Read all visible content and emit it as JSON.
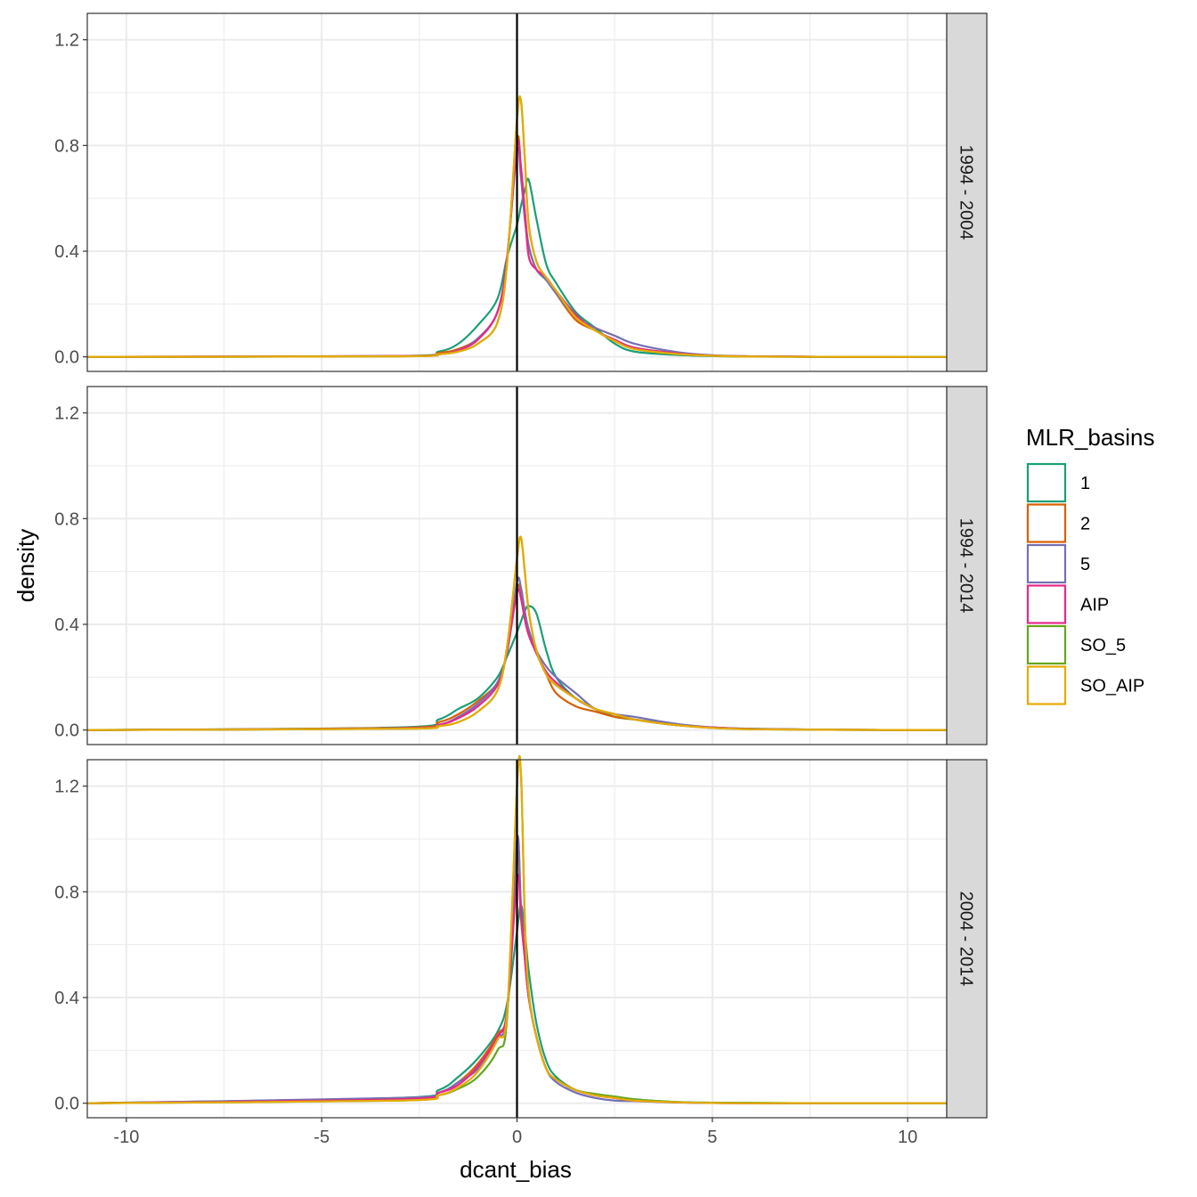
{
  "chart_data": {
    "type": "line",
    "xlabel": "dcant_bias",
    "ylabel": "density",
    "xlim": [
      -11,
      11
    ],
    "ylim": [
      -0.055,
      1.3
    ],
    "x_ticks": [
      -10,
      -5,
      0,
      5,
      10
    ],
    "x_tick_labels": [
      "-10",
      "-5",
      "0",
      "5",
      "10"
    ],
    "y_ticks": [
      0.0,
      0.4,
      0.8,
      1.2
    ],
    "y_tick_labels": [
      "0.0",
      "0.4",
      "0.8",
      "1.2"
    ],
    "grid": true,
    "vline_x": 0,
    "legend": {
      "title": "MLR_basins",
      "position": "right",
      "entries": [
        {
          "label": "1",
          "color": "#1B9E77"
        },
        {
          "label": "2",
          "color": "#D95F02"
        },
        {
          "label": "5",
          "color": "#7570B3"
        },
        {
          "label": "AIP",
          "color": "#E7298A"
        },
        {
          "label": "SO_5",
          "color": "#66A61E"
        },
        {
          "label": "SO_AIP",
          "color": "#E6AB02"
        }
      ]
    },
    "x_grid": [
      -11,
      -3,
      -2,
      -1.5,
      -1,
      -0.5,
      -0.25,
      0,
      0.1,
      0.2,
      0.3,
      0.5,
      0.75,
      1,
      1.5,
      2,
      2.5,
      3,
      4,
      5,
      6,
      8,
      11
    ],
    "facets": [
      {
        "strip": "1994 - 2004",
        "series": [
          {
            "name": "1",
            "values": [
              0,
              0.003,
              0.02,
              0.05,
              0.12,
              0.22,
              0.38,
              0.5,
              0.57,
              0.63,
              0.67,
              0.52,
              0.35,
              0.28,
              0.17,
              0.11,
              0.05,
              0.02,
              0.008,
              0.003,
              0.001,
              0,
              0
            ]
          },
          {
            "name": "2",
            "values": [
              0,
              0.003,
              0.015,
              0.03,
              0.07,
              0.17,
              0.38,
              0.82,
              0.72,
              0.55,
              0.42,
              0.33,
              0.3,
              0.24,
              0.14,
              0.1,
              0.06,
              0.035,
              0.015,
              0.005,
              0.002,
              0,
              0
            ]
          },
          {
            "name": "5",
            "values": [
              0,
              0.003,
              0.01,
              0.025,
              0.07,
              0.17,
              0.38,
              0.78,
              0.68,
              0.52,
              0.42,
              0.33,
              0.29,
              0.24,
              0.15,
              0.11,
              0.08,
              0.05,
              0.02,
              0.006,
              0.002,
              0,
              0
            ]
          },
          {
            "name": "AIP",
            "values": [
              0,
              0.003,
              0.01,
              0.025,
              0.065,
              0.17,
              0.38,
              0.8,
              0.72,
              0.55,
              0.38,
              0.33,
              0.3,
              0.25,
              0.16,
              0.1,
              0.065,
              0.035,
              0.015,
              0.005,
              0.002,
              0,
              0
            ]
          },
          {
            "name": "SO_5",
            "values": [
              0,
              0.002,
              0.01,
              0.02,
              0.05,
              0.13,
              0.36,
              0.9,
              0.97,
              0.75,
              0.5,
              0.36,
              0.3,
              0.25,
              0.15,
              0.1,
              0.06,
              0.03,
              0.012,
              0.004,
              0.001,
              0,
              0
            ]
          },
          {
            "name": "SO_AIP",
            "values": [
              0,
              0.002,
              0.01,
              0.02,
              0.05,
              0.13,
              0.36,
              0.9,
              0.97,
              0.75,
              0.5,
              0.36,
              0.3,
              0.25,
              0.15,
              0.1,
              0.06,
              0.03,
              0.012,
              0.004,
              0.001,
              0,
              0
            ]
          }
        ]
      },
      {
        "strip": "1994 - 2014",
        "series": [
          {
            "name": "1",
            "values": [
              0,
              0.01,
              0.04,
              0.08,
              0.12,
              0.2,
              0.28,
              0.37,
              0.41,
              0.45,
              0.47,
              0.44,
              0.3,
              0.2,
              0.12,
              0.08,
              0.05,
              0.04,
              0.02,
              0.01,
              0.005,
              0.001,
              0
            ]
          },
          {
            "name": "2",
            "values": [
              0,
              0.008,
              0.03,
              0.06,
              0.11,
              0.18,
              0.3,
              0.54,
              0.5,
              0.42,
              0.36,
              0.29,
              0.21,
              0.14,
              0.09,
              0.07,
              0.05,
              0.04,
              0.02,
              0.01,
              0.004,
              0.001,
              0
            ]
          },
          {
            "name": "5",
            "values": [
              0,
              0.006,
              0.02,
              0.05,
              0.1,
              0.18,
              0.3,
              0.56,
              0.54,
              0.45,
              0.38,
              0.3,
              0.24,
              0.2,
              0.14,
              0.08,
              0.06,
              0.05,
              0.025,
              0.01,
              0.004,
              0.001,
              0
            ]
          },
          {
            "name": "AIP",
            "values": [
              0,
              0.006,
              0.02,
              0.045,
              0.09,
              0.17,
              0.3,
              0.52,
              0.5,
              0.42,
              0.36,
              0.29,
              0.22,
              0.18,
              0.12,
              0.08,
              0.06,
              0.04,
              0.02,
              0.01,
              0.004,
              0.001,
              0
            ]
          },
          {
            "name": "SO_5",
            "values": [
              0,
              0.005,
              0.015,
              0.03,
              0.07,
              0.15,
              0.32,
              0.65,
              0.73,
              0.6,
              0.45,
              0.3,
              0.21,
              0.17,
              0.12,
              0.08,
              0.06,
              0.04,
              0.02,
              0.008,
              0.003,
              0.001,
              0
            ]
          },
          {
            "name": "SO_AIP",
            "values": [
              0,
              0.005,
              0.015,
              0.03,
              0.07,
              0.15,
              0.32,
              0.65,
              0.73,
              0.6,
              0.45,
              0.3,
              0.21,
              0.17,
              0.12,
              0.08,
              0.06,
              0.04,
              0.02,
              0.008,
              0.003,
              0.001,
              0
            ]
          }
        ]
      },
      {
        "strip": "2004 - 2014",
        "series": [
          {
            "name": "1",
            "values": [
              0,
              0.02,
              0.05,
              0.1,
              0.17,
              0.27,
              0.38,
              0.65,
              0.75,
              0.65,
              0.5,
              0.3,
              0.16,
              0.1,
              0.05,
              0.035,
              0.025,
              0.015,
              0.005,
              0.002,
              0.001,
              0,
              0
            ]
          },
          {
            "name": "2",
            "values": [
              0,
              0.015,
              0.04,
              0.08,
              0.15,
              0.26,
              0.36,
              0.95,
              0.7,
              0.55,
              0.4,
              0.25,
              0.13,
              0.09,
              0.05,
              0.03,
              0.02,
              0.01,
              0.004,
              0.001,
              0,
              0,
              0
            ]
          },
          {
            "name": "5",
            "values": [
              0,
              0.02,
              0.04,
              0.08,
              0.13,
              0.24,
              0.35,
              1.0,
              0.75,
              0.55,
              0.4,
              0.25,
              0.13,
              0.08,
              0.04,
              0.02,
              0.01,
              0.008,
              0.003,
              0.001,
              0,
              0,
              0
            ]
          },
          {
            "name": "AIP",
            "values": [
              0,
              0.015,
              0.04,
              0.07,
              0.14,
              0.25,
              0.35,
              0.85,
              0.72,
              0.55,
              0.4,
              0.25,
              0.13,
              0.09,
              0.05,
              0.03,
              0.02,
              0.01,
              0.004,
              0.001,
              0,
              0,
              0
            ]
          },
          {
            "name": "SO_5",
            "values": [
              0,
              0.01,
              0.03,
              0.055,
              0.1,
              0.2,
              0.33,
              1.2,
              1.25,
              0.7,
              0.42,
              0.25,
              0.13,
              0.09,
              0.05,
              0.035,
              0.025,
              0.015,
              0.005,
              0.002,
              0.001,
              0,
              0
            ]
          },
          {
            "name": "SO_AIP",
            "values": [
              0,
              0.01,
              0.03,
              0.06,
              0.12,
              0.24,
              0.35,
              1.2,
              1.25,
              0.7,
              0.42,
              0.25,
              0.13,
              0.09,
              0.05,
              0.03,
              0.02,
              0.01,
              0.004,
              0.001,
              0,
              0,
              0
            ]
          }
        ]
      }
    ]
  }
}
